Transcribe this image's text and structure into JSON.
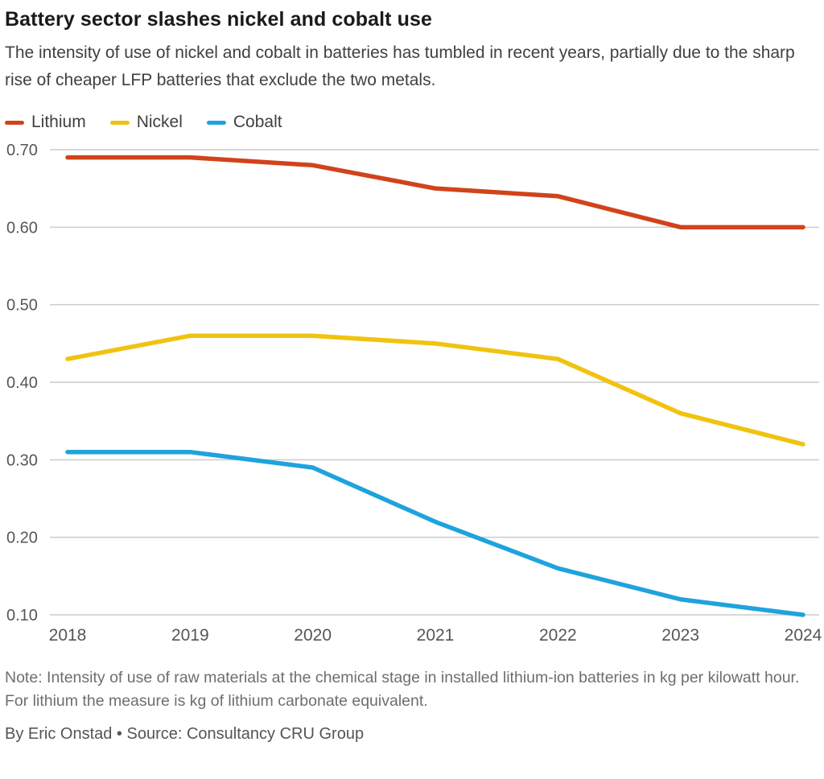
{
  "header": {
    "title": "Battery sector slashes nickel and cobalt use",
    "subtitle": "The intensity of use of nickel and cobalt in batteries has tumbled in recent years, partially due to the sharp rise of cheaper LFP batteries that exclude the two metals."
  },
  "chart_data": {
    "type": "line",
    "x": [
      2018,
      2019,
      2020,
      2021,
      2022,
      2023,
      2024
    ],
    "series": [
      {
        "name": "Lithium",
        "color": "#d1431b",
        "values": [
          0.69,
          0.69,
          0.68,
          0.65,
          0.64,
          0.6,
          0.6
        ]
      },
      {
        "name": "Nickel",
        "color": "#f0c311",
        "values": [
          0.43,
          0.46,
          0.46,
          0.45,
          0.43,
          0.36,
          0.32
        ]
      },
      {
        "name": "Cobalt",
        "color": "#1fa3dc",
        "values": [
          0.31,
          0.31,
          0.29,
          0.22,
          0.16,
          0.12,
          0.1
        ]
      }
    ],
    "title": "Battery sector slashes nickel and cobalt use",
    "xlabel": "",
    "ylabel": "",
    "ylim": [
      0.1,
      0.7
    ],
    "yticks": [
      0.1,
      0.2,
      0.3,
      0.4,
      0.5,
      0.6,
      0.7
    ],
    "grid": true,
    "legend_position": "top-left",
    "gridline_color": "#cccccc",
    "tick_label_color": "#565656"
  },
  "footer": {
    "note": "Note: Intensity of use of raw materials at the chemical stage in installed lithium-ion batteries in kg per kilowatt hour. For lithium the measure is kg of lithium carbonate equivalent.",
    "byline": "By Eric Onstad • Source: Consultancy CRU Group"
  }
}
